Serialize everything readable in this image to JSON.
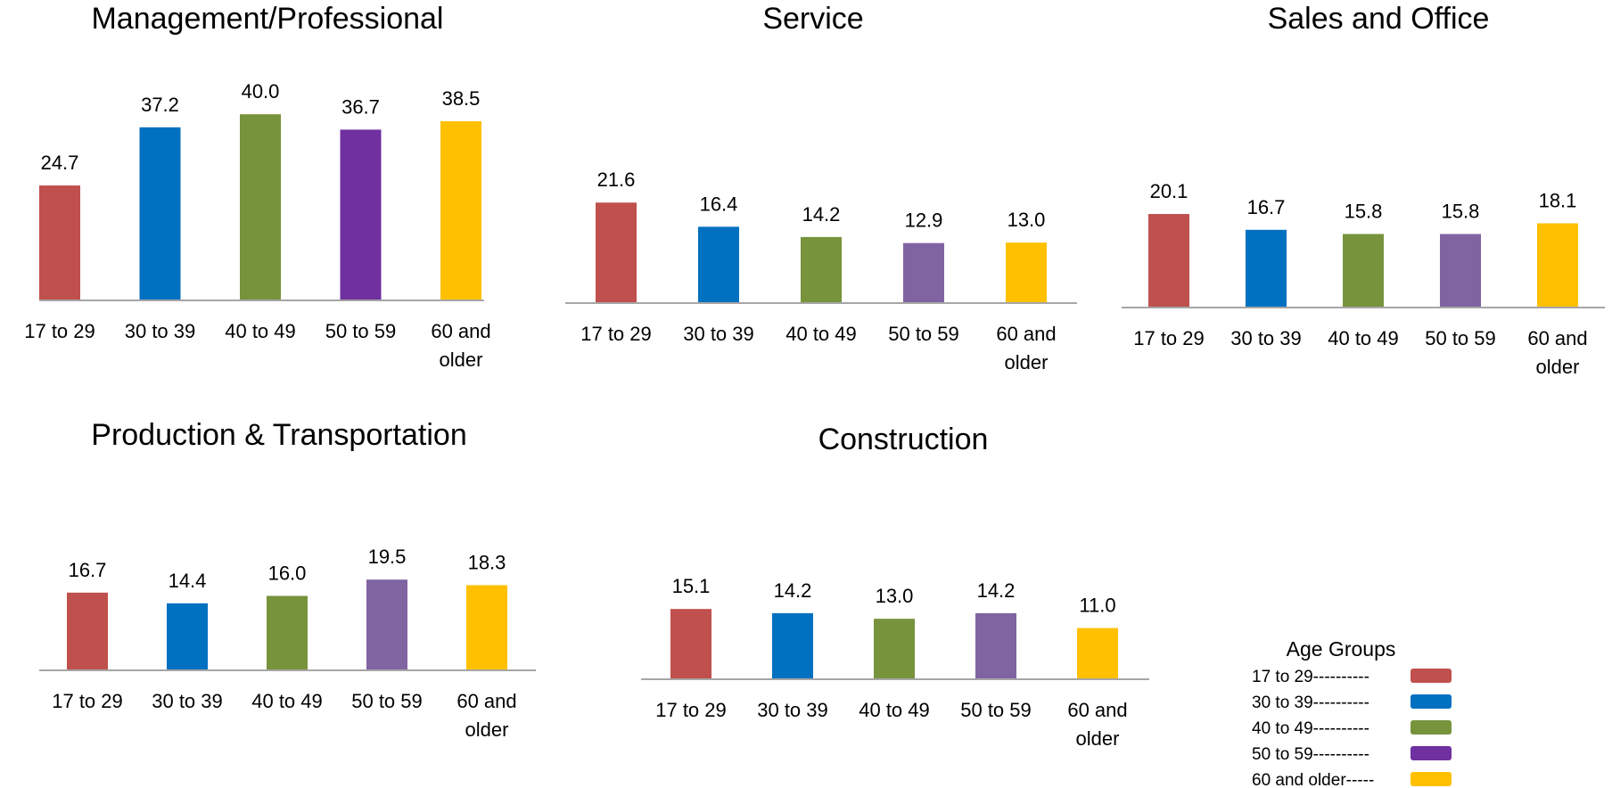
{
  "colors": {
    "g17_29": "#C0504D",
    "g30_39": "#0070C0",
    "g40_49": "#77933C",
    "g50_59": "#7030A0",
    "g50_59_alt": "#8064A2",
    "g60": "#FFC000",
    "axis": "#A6A6A6"
  },
  "legend": {
    "title": "Age Groups",
    "items": [
      {
        "label": "17 to 29----------",
        "color": "#C0504D"
      },
      {
        "label": "30 to 39----------",
        "color": "#0070C0"
      },
      {
        "label": "40 to 49----------",
        "color": "#77933C"
      },
      {
        "label": "50 to 59----------",
        "color": "#7030A0"
      },
      {
        "label": "60 and older-----",
        "color": "#FFC000"
      }
    ]
  },
  "chart_data": [
    {
      "type": "bar",
      "title": "Management/Professional",
      "categories": [
        "17 to 29",
        "30 to 39",
        "40 to 49",
        "50 to 59",
        "60 and older"
      ],
      "values": [
        24.7,
        37.2,
        40.0,
        36.7,
        38.5
      ],
      "value_labels": [
        "24.7",
        "37.2",
        "40.0",
        "36.7",
        "38.5"
      ],
      "colors": [
        "#C0504D",
        "#0070C0",
        "#77933C",
        "#7030A0",
        "#FFC000"
      ],
      "ylim": [
        0,
        45
      ],
      "grid": false
    },
    {
      "type": "bar",
      "title": "Service",
      "categories": [
        "17 to 29",
        "30 to 39",
        "40 to 49",
        "50 to 59",
        "60 and older"
      ],
      "values": [
        21.6,
        16.4,
        14.2,
        12.9,
        13.0
      ],
      "value_labels": [
        "21.6",
        "16.4",
        "14.2",
        "12.9",
        "13.0"
      ],
      "colors": [
        "#C0504D",
        "#0070C0",
        "#77933C",
        "#8064A2",
        "#FFC000"
      ],
      "ylim": [
        0,
        45
      ],
      "grid": false
    },
    {
      "type": "bar",
      "title": "Sales and Office",
      "categories": [
        "17 to 29",
        "30 to 39",
        "40 to 49",
        "50 to 59",
        "60 and older"
      ],
      "values": [
        20.1,
        16.7,
        15.8,
        15.8,
        18.1
      ],
      "value_labels": [
        "20.1",
        "16.7",
        "15.8",
        "15.8",
        "18.1"
      ],
      "colors": [
        "#C0504D",
        "#0070C0",
        "#77933C",
        "#8064A2",
        "#FFC000"
      ],
      "ylim": [
        0,
        45
      ],
      "grid": false
    },
    {
      "type": "bar",
      "title": "Production & Transportation",
      "categories": [
        "17 to 29",
        "30 to 39",
        "40 to 49",
        "50 to 59",
        "60 and older"
      ],
      "values": [
        16.7,
        14.4,
        16.0,
        19.5,
        18.3
      ],
      "value_labels": [
        "16.7",
        "14.4",
        "16.0",
        "19.5",
        "18.3"
      ],
      "colors": [
        "#C0504D",
        "#0070C0",
        "#77933C",
        "#8064A2",
        "#FFC000"
      ],
      "ylim": [
        0,
        45
      ],
      "grid": false
    },
    {
      "type": "bar",
      "title": "Construction",
      "categories": [
        "17 to 29",
        "30 to 39",
        "40 to 49",
        "50 to 59",
        "60 and older"
      ],
      "values": [
        15.1,
        14.2,
        13.0,
        14.2,
        11.0
      ],
      "value_labels": [
        "15.1",
        "14.2",
        "13.0",
        "14.2",
        "11.0"
      ],
      "colors": [
        "#C0504D",
        "#0070C0",
        "#77933C",
        "#8064A2",
        "#FFC000"
      ],
      "ylim": [
        0,
        45
      ],
      "grid": false
    }
  ]
}
